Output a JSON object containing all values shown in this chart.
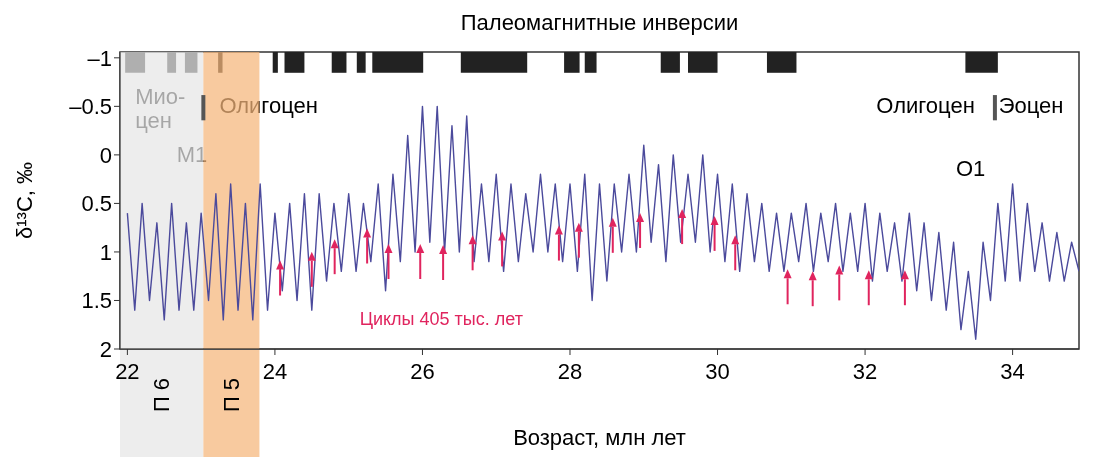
{
  "chart_data": {
    "type": "line",
    "title": "Палеомагнитные инверсии",
    "xlabel": "Возраст, млн лет",
    "ylabel": "δ¹³C, ‰",
    "xlim": [
      21.9,
      34.9
    ],
    "xticks": [
      22,
      24,
      26,
      28,
      30,
      32,
      34
    ],
    "ylim": [
      2,
      -1.06
    ],
    "yticks": [
      {
        "value": -1,
        "label": "–1"
      },
      {
        "value": -0.5,
        "label": "–0.5"
      },
      0,
      0.5,
      1,
      1.5,
      2
    ],
    "legend": "bottom",
    "marker": "none",
    "line_style": "solid",
    "series": [
      {
        "color": "#4b4a9c",
        "x": [
          22.0,
          22.1,
          22.2,
          22.3,
          22.4,
          22.5,
          22.6,
          22.7,
          22.8,
          22.9,
          23.0,
          23.1,
          23.2,
          23.3,
          23.4,
          23.5,
          23.6,
          23.7,
          23.8,
          23.9,
          24.0,
          24.1,
          24.2,
          24.3,
          24.4,
          24.5,
          24.6,
          24.7,
          24.8,
          24.9,
          25.0,
          25.1,
          25.2,
          25.3,
          25.4,
          25.5,
          25.6,
          25.7,
          25.8,
          25.9,
          26.0,
          26.1,
          26.2,
          26.3,
          26.4,
          26.5,
          26.6,
          26.7,
          26.8,
          26.9,
          27.0,
          27.1,
          27.2,
          27.3,
          27.4,
          27.5,
          27.6,
          27.7,
          27.8,
          27.9,
          28.0,
          28.1,
          28.2,
          28.3,
          28.4,
          28.5,
          28.6,
          28.7,
          28.8,
          28.9,
          29.0,
          29.1,
          29.2,
          29.3,
          29.4,
          29.5,
          29.6,
          29.7,
          29.8,
          29.9,
          30.0,
          30.1,
          30.2,
          30.3,
          30.4,
          30.5,
          30.6,
          30.7,
          30.8,
          30.9,
          31.0,
          31.1,
          31.2,
          31.3,
          31.4,
          31.5,
          31.6,
          31.7,
          31.8,
          31.9,
          32.0,
          32.1,
          32.2,
          32.3,
          32.4,
          32.5,
          32.6,
          32.7,
          32.8,
          32.9,
          33.0,
          33.1,
          33.2,
          33.3,
          33.4,
          33.5,
          33.6,
          33.7,
          33.8,
          33.9,
          34.0,
          34.1,
          34.2,
          34.3,
          34.4,
          34.5,
          34.6,
          34.7,
          34.8,
          34.9
        ],
        "values": [
          0.6,
          1.6,
          0.5,
          1.5,
          0.7,
          1.7,
          0.5,
          1.6,
          0.7,
          1.6,
          0.6,
          1.5,
          0.4,
          1.7,
          0.3,
          1.6,
          0.5,
          1.7,
          0.3,
          1.6,
          0.6,
          1.4,
          0.5,
          1.5,
          0.4,
          1.6,
          0.4,
          1.3,
          0.5,
          1.2,
          0.4,
          1.2,
          0.5,
          1.1,
          0.3,
          1.4,
          0.2,
          1.1,
          -0.2,
          1.0,
          -0.5,
          0.9,
          -0.5,
          1.0,
          -0.3,
          1.0,
          -0.4,
          1.1,
          0.3,
          1.1,
          0.2,
          1.2,
          0.3,
          1.1,
          0.4,
          1.0,
          0.2,
          1.0,
          0.3,
          1.1,
          0.3,
          1.2,
          0.2,
          1.5,
          0.3,
          1.3,
          0.3,
          1.0,
          0.2,
          1.0,
          -0.1,
          0.9,
          0.1,
          1.1,
          0.0,
          0.9,
          0.2,
          0.9,
          0.0,
          1.0,
          0.2,
          1.1,
          0.3,
          1.2,
          0.4,
          1.1,
          0.5,
          1.2,
          0.6,
          1.2,
          0.6,
          1.1,
          0.5,
          1.2,
          0.6,
          1.1,
          0.5,
          1.2,
          0.6,
          1.2,
          0.5,
          1.3,
          0.6,
          1.2,
          0.7,
          1.3,
          0.6,
          1.4,
          0.7,
          1.5,
          0.8,
          1.6,
          0.9,
          1.8,
          1.2,
          1.9,
          0.9,
          1.5,
          0.5,
          1.3,
          0.3,
          1.3,
          0.5,
          1.2,
          0.7,
          1.3,
          0.8,
          1.3,
          0.9,
          1.2
        ]
      },
      {
        "type": "scatter",
        "name": "Циклы 405 тыс. лет",
        "color": "#e0245e",
        "marker": "triangle",
        "x": [
          24.07,
          24.5,
          24.81,
          25.25,
          25.54,
          25.97,
          26.28,
          26.68,
          27.08,
          27.85,
          28.12,
          28.58,
          28.95,
          29.52,
          29.96,
          30.24,
          30.95,
          31.29,
          31.65,
          32.05,
          32.54
        ],
        "values": [
          1.14,
          1.05,
          0.92,
          0.81,
          0.97,
          0.97,
          0.98,
          0.88,
          0.84,
          0.78,
          0.75,
          0.7,
          0.65,
          0.61,
          0.68,
          0.88,
          1.23,
          1.25,
          1.19,
          1.24,
          1.24
        ]
      }
    ],
    "bands": [
      {
        "axis": "x",
        "from": 21.97,
        "to": 22.24,
        "color": "#222222"
      },
      {
        "axis": "x",
        "from": 22.54,
        "to": 22.66,
        "color": "#222222"
      },
      {
        "axis": "x",
        "from": 22.78,
        "to": 22.95,
        "color": "#222222"
      },
      {
        "axis": "x",
        "from": 23.23,
        "to": 23.29,
        "color": "#222222"
      },
      {
        "axis": "x",
        "from": 23.97,
        "to": 24.04,
        "color": "#222222"
      },
      {
        "axis": "x",
        "from": 24.13,
        "to": 24.4,
        "color": "#222222"
      },
      {
        "axis": "x",
        "from": 24.77,
        "to": 24.97,
        "color": "#222222"
      },
      {
        "axis": "x",
        "from": 25.11,
        "to": 25.23,
        "color": "#222222"
      },
      {
        "axis": "x",
        "from": 25.32,
        "to": 26.01,
        "color": "#222222"
      },
      {
        "axis": "x",
        "from": 26.52,
        "to": 27.42,
        "color": "#222222"
      },
      {
        "axis": "x",
        "from": 27.92,
        "to": 28.13,
        "color": "#222222"
      },
      {
        "axis": "x",
        "from": 28.2,
        "to": 28.36,
        "color": "#222222"
      },
      {
        "axis": "x",
        "from": 29.23,
        "to": 29.49,
        "color": "#222222"
      },
      {
        "axis": "x",
        "from": 29.6,
        "to": 30.0,
        "color": "#222222"
      },
      {
        "axis": "x",
        "from": 30.67,
        "to": 31.07,
        "color": "#222222"
      },
      {
        "axis": "x",
        "from": 33.36,
        "to": 33.8,
        "color": "#222222"
      },
      {
        "axis": "x",
        "from": 21.9,
        "to": 23.03,
        "label": "П 6",
        "color": "#e6e6e6"
      },
      {
        "axis": "x",
        "from": 23.03,
        "to": 23.79,
        "label": "П 5",
        "color": "#f5b57a"
      }
    ],
    "ref_lines": [
      {
        "axis": "x",
        "value": 23.03,
        "color": "#555555"
      },
      {
        "axis": "x",
        "value": 33.76,
        "color": "#555555"
      }
    ],
    "annotations": [
      "Мио-\nцен",
      "Олигоцен",
      "Олигоцен",
      "Эоцен",
      "M1",
      "O1"
    ]
  }
}
